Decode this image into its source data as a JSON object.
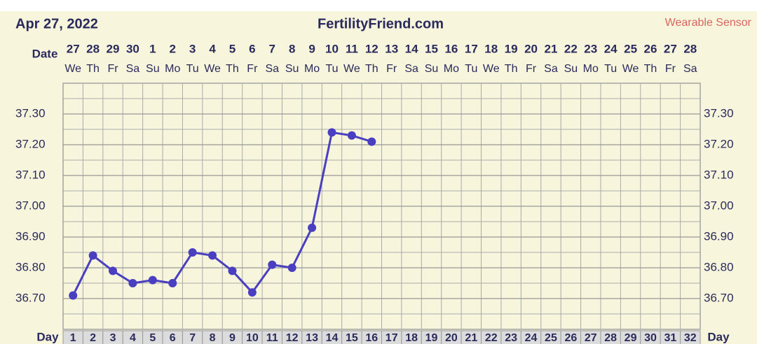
{
  "chart_data": {
    "type": "line",
    "title": "FertilityFriend.com",
    "date": "Apr 27, 2022",
    "source": "Wearable Sensor",
    "date_label": "Date",
    "day_label": "Day",
    "dates": [
      "27",
      "28",
      "29",
      "30",
      "1",
      "2",
      "3",
      "4",
      "5",
      "6",
      "7",
      "8",
      "9",
      "10",
      "11",
      "12",
      "13",
      "14",
      "15",
      "16",
      "17",
      "18",
      "19",
      "20",
      "21",
      "22",
      "23",
      "24",
      "25",
      "26",
      "27",
      "28"
    ],
    "weekdays": [
      "We",
      "Th",
      "Fr",
      "Sa",
      "Su",
      "Mo",
      "Tu",
      "We",
      "Th",
      "Fr",
      "Sa",
      "Su",
      "Mo",
      "Tu",
      "We",
      "Th",
      "Fr",
      "Sa",
      "Su",
      "Mo",
      "Tu",
      "We",
      "Th",
      "Fr",
      "Sa",
      "Su",
      "Mo",
      "Tu",
      "We",
      "Th",
      "Fr",
      "Sa"
    ],
    "x": [
      1,
      2,
      3,
      4,
      5,
      6,
      7,
      8,
      9,
      10,
      11,
      12,
      13,
      14,
      15,
      16,
      17,
      18,
      19,
      20,
      21,
      22,
      23,
      24,
      25,
      26,
      27,
      28,
      29,
      30,
      31,
      32
    ],
    "xlim": [
      0.5,
      32.5
    ],
    "series": [
      {
        "color": "#4a3fc0",
        "values": [
          36.71,
          36.84,
          36.79,
          36.75,
          36.76,
          36.75,
          36.85,
          36.84,
          36.79,
          36.72,
          36.81,
          36.8,
          36.93,
          37.24,
          37.23,
          37.21,
          null,
          null,
          null,
          null,
          null,
          null,
          null,
          null,
          null,
          null,
          null,
          null,
          null,
          null,
          null,
          null
        ]
      }
    ],
    "ylim": [
      36.6,
      37.4
    ],
    "yticks": [
      {
        "value": 36.7,
        "label": "36.70"
      },
      {
        "value": 36.8,
        "label": "36.80"
      },
      {
        "value": 36.9,
        "label": "36.90"
      },
      {
        "value": 37.0,
        "label": "37.00"
      },
      {
        "value": 37.1,
        "label": "37.10"
      },
      {
        "value": 37.2,
        "label": "37.20"
      },
      {
        "value": 37.3,
        "label": "37.30"
      }
    ],
    "grid": true
  }
}
